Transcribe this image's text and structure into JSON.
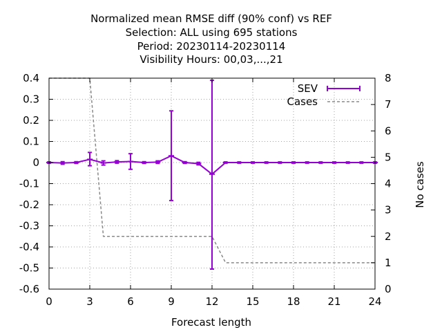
{
  "chart_data": {
    "type": "line",
    "title_lines": [
      "Normalized mean RMSE diff (90% conf) vs REF",
      "Selection: ALL using   695 stations",
      "Period: 20230114-20230114",
      "Visibility   Hours:  00,03,...,21"
    ],
    "xlabel": "Forecast length",
    "ylabel": "",
    "y2label": "No cases",
    "xlim": [
      0,
      24
    ],
    "ylim": [
      -0.6,
      0.4
    ],
    "y2lim": [
      0,
      8
    ],
    "xticks": [
      "0",
      "3",
      "6",
      "9",
      "12",
      "15",
      "18",
      "21",
      "24"
    ],
    "yticks": [
      "0.4",
      "0.3",
      "0.2",
      "0.1",
      "0",
      "-0.1",
      "-0.2",
      "-0.3",
      "-0.4",
      "-0.5",
      "-0.6"
    ],
    "y2ticks": [
      "8",
      "7",
      "6",
      "5",
      "4",
      "3",
      "2",
      "1",
      "0"
    ],
    "legend_position": "top-right",
    "grid": true,
    "series": [
      {
        "name": "SEV",
        "color": "#9400d3",
        "style": "errorbars",
        "axis": "y1",
        "points": [
          {
            "x": 0,
            "y": 0.0,
            "lo": -0.003,
            "hi": 0.003
          },
          {
            "x": 1,
            "y": -0.002,
            "lo": -0.008,
            "hi": 0.004
          },
          {
            "x": 2,
            "y": 0.0,
            "lo": -0.004,
            "hi": 0.004
          },
          {
            "x": 3,
            "y": 0.015,
            "lo": -0.015,
            "hi": 0.048
          },
          {
            "x": 4,
            "y": -0.002,
            "lo": -0.012,
            "hi": 0.008
          },
          {
            "x": 5,
            "y": 0.003,
            "lo": -0.003,
            "hi": 0.009
          },
          {
            "x": 6,
            "y": 0.005,
            "lo": -0.032,
            "hi": 0.042
          },
          {
            "x": 7,
            "y": 0.0,
            "lo": -0.004,
            "hi": 0.004
          },
          {
            "x": 8,
            "y": 0.002,
            "lo": -0.004,
            "hi": 0.008
          },
          {
            "x": 9,
            "y": 0.032,
            "lo": -0.18,
            "hi": 0.245
          },
          {
            "x": 10,
            "y": 0.0,
            "lo": -0.004,
            "hi": 0.004
          },
          {
            "x": 11,
            "y": -0.005,
            "lo": -0.011,
            "hi": 0.001
          },
          {
            "x": 12,
            "y": -0.055,
            "lo": -0.505,
            "hi": 0.39
          },
          {
            "x": 13,
            "y": 0.0,
            "lo": -0.003,
            "hi": 0.003
          },
          {
            "x": 14,
            "y": 0.0,
            "lo": -0.003,
            "hi": 0.003
          },
          {
            "x": 15,
            "y": 0.0,
            "lo": -0.003,
            "hi": 0.003
          },
          {
            "x": 16,
            "y": 0.0,
            "lo": -0.003,
            "hi": 0.003
          },
          {
            "x": 17,
            "y": 0.0,
            "lo": -0.003,
            "hi": 0.003
          },
          {
            "x": 18,
            "y": 0.0,
            "lo": -0.003,
            "hi": 0.003
          },
          {
            "x": 19,
            "y": 0.0,
            "lo": -0.003,
            "hi": 0.003
          },
          {
            "x": 20,
            "y": 0.0,
            "lo": -0.003,
            "hi": 0.003
          },
          {
            "x": 21,
            "y": 0.0,
            "lo": -0.003,
            "hi": 0.003
          },
          {
            "x": 22,
            "y": 0.0,
            "lo": -0.003,
            "hi": 0.003
          },
          {
            "x": 23,
            "y": 0.0,
            "lo": -0.003,
            "hi": 0.003
          },
          {
            "x": 24,
            "y": 0.0,
            "lo": -0.003,
            "hi": 0.003
          }
        ]
      },
      {
        "name": "Cases",
        "color": "#888888",
        "style": "dashed",
        "axis": "y2",
        "x": [
          0,
          3,
          4,
          5,
          6,
          7,
          8,
          9,
          10,
          11,
          12,
          13,
          14,
          15,
          16,
          17,
          18,
          19,
          20,
          21,
          22,
          23,
          24
        ],
        "values": [
          8,
          8,
          2,
          2,
          2,
          2,
          2,
          2,
          2,
          2,
          2,
          1,
          1,
          1,
          1,
          1,
          1,
          1,
          1,
          1,
          1,
          1,
          1
        ]
      }
    ]
  }
}
